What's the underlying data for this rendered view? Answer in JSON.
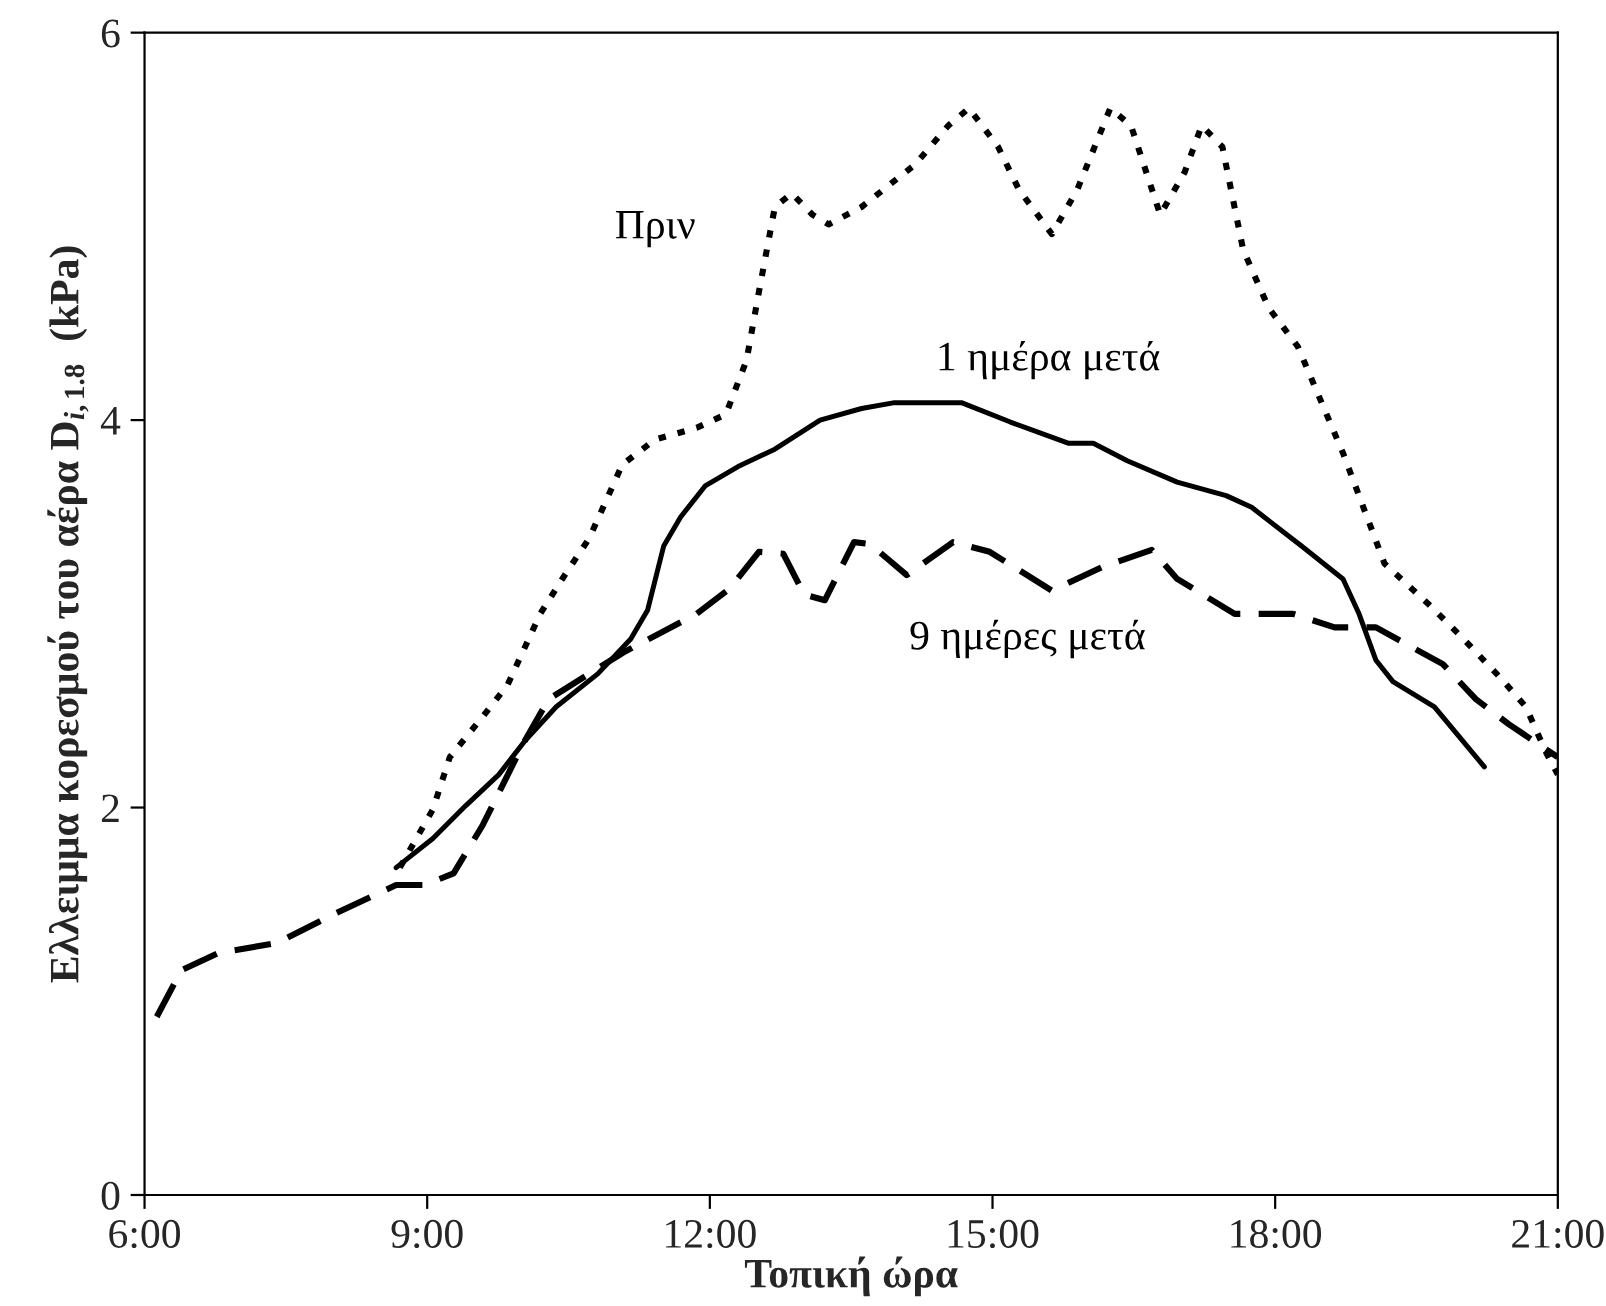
{
  "chart_data": {
    "type": "line",
    "xlabel": "Τοπική ώρα",
    "ylabel": "Ελλειμμα κορεσμού του αέρα D$_{i,1.8}$  (kPa)",
    "xlim": [
      6,
      21
    ],
    "xticks": [
      {
        "value": 6,
        "label": "6:00"
      },
      {
        "value": 9,
        "label": "9:00"
      },
      {
        "value": 12,
        "label": "12:00"
      },
      {
        "value": 15,
        "label": "15:00"
      },
      {
        "value": 18,
        "label": "18:00"
      },
      {
        "value": 21,
        "label": "21:00"
      }
    ],
    "ylim": [
      0,
      6
    ],
    "yticks": [
      0,
      2,
      4,
      6
    ],
    "grid": false,
    "legend": false,
    "marker": "none",
    "series": [
      {
        "name": "Πριν",
        "color": "#000000",
        "line_style": "dotted",
        "x": [
          8.71,
          9.06,
          9.24,
          9.59,
          9.85,
          10.2,
          10.46,
          10.72,
          11.07,
          11.42,
          11.86,
          12.17,
          12.39,
          12.52,
          12.69,
          12.87,
          13.09,
          13.26,
          13.61,
          14.18,
          14.53,
          14.75,
          15.06,
          15.28,
          15.63,
          15.9,
          16.25,
          16.47,
          16.78,
          17.04,
          17.22,
          17.44,
          17.66,
          17.93,
          18.24,
          18.72,
          19.16,
          19.65,
          20.0,
          20.39,
          20.66,
          20.88,
          21.0
        ],
        "values": [
          1.69,
          1.99,
          2.26,
          2.47,
          2.63,
          3.0,
          3.2,
          3.39,
          3.77,
          3.9,
          3.96,
          4.03,
          4.31,
          4.66,
          5.1,
          5.17,
          5.06,
          5.01,
          5.1,
          5.32,
          5.52,
          5.61,
          5.41,
          5.19,
          4.96,
          5.19,
          5.61,
          5.52,
          5.06,
          5.28,
          5.52,
          5.41,
          4.88,
          4.58,
          4.38,
          3.83,
          3.26,
          3.04,
          2.87,
          2.67,
          2.52,
          2.28,
          2.17
        ]
      },
      {
        "name": "1 ημέρα μετά",
        "color": "#000000",
        "line_style": "solid",
        "x": [
          8.67,
          9.06,
          9.41,
          9.76,
          10.03,
          10.37,
          10.81,
          11.16,
          11.34,
          11.51,
          11.69,
          11.95,
          12.3,
          12.69,
          13.17,
          13.61,
          13.96,
          14.67,
          15.19,
          15.81,
          16.07,
          16.43,
          16.96,
          17.48,
          17.75,
          18.28,
          18.72,
          18.89,
          19.07,
          19.25,
          19.69,
          20.22
        ],
        "values": [
          1.69,
          1.84,
          2.01,
          2.17,
          2.34,
          2.52,
          2.69,
          2.87,
          3.02,
          3.35,
          3.5,
          3.66,
          3.76,
          3.85,
          4.0,
          4.06,
          4.09,
          4.09,
          3.99,
          3.88,
          3.88,
          3.79,
          3.68,
          3.61,
          3.55,
          3.35,
          3.18,
          3.0,
          2.76,
          2.65,
          2.52,
          2.21
        ]
      },
      {
        "name": "9 ημέρες μετά",
        "color": "#000000",
        "line_style": "dashed",
        "x": [
          6.13,
          6.39,
          6.79,
          7.4,
          8.01,
          8.67,
          8.97,
          9.28,
          9.59,
          10.03,
          10.29,
          11.08,
          11.86,
          12.21,
          12.52,
          12.78,
          13.0,
          13.22,
          13.53,
          13.7,
          14.09,
          14.58,
          14.97,
          15.63,
          16.16,
          16.69,
          16.96,
          17.57,
          18.19,
          18.63,
          19.07,
          19.78,
          20.13,
          20.48,
          21.0
        ],
        "values": [
          0.92,
          1.16,
          1.25,
          1.3,
          1.45,
          1.6,
          1.6,
          1.66,
          1.91,
          2.34,
          2.56,
          2.8,
          3.0,
          3.13,
          3.32,
          3.31,
          3.1,
          3.07,
          3.37,
          3.36,
          3.2,
          3.37,
          3.32,
          3.12,
          3.24,
          3.33,
          3.18,
          3.0,
          3.0,
          2.93,
          2.93,
          2.74,
          2.56,
          2.43,
          2.26
        ]
      }
    ]
  }
}
